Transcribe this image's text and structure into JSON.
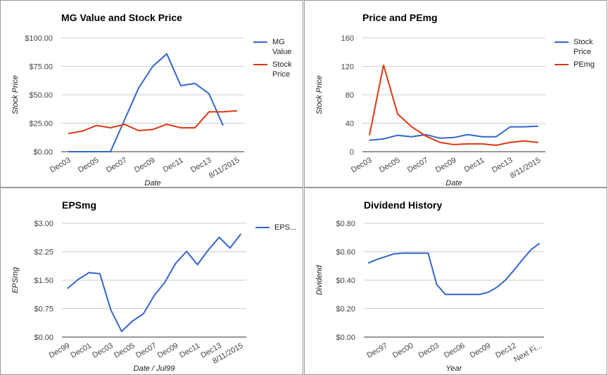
{
  "chart_data": [
    {
      "type": "line",
      "title": "MG Value and Stock Price",
      "y_label": "Stock Price",
      "x_label": "Date",
      "categories": [
        "Dec03",
        null,
        "Dec05",
        null,
        "Dec07",
        null,
        "Dec09",
        null,
        "Dec11",
        null,
        "Dec13",
        null,
        "8/11/2015"
      ],
      "series": [
        {
          "name": "MG Value",
          "color": "#3366cc",
          "values": [
            0,
            0,
            0,
            0,
            28,
            56,
            75,
            86,
            58,
            60,
            51,
            23,
            null
          ]
        },
        {
          "name": "Stock Price",
          "color": "#dc3912",
          "values": [
            16,
            18,
            23,
            21,
            24,
            18.5,
            19.5,
            24,
            21,
            21,
            35,
            35,
            36
          ]
        }
      ],
      "ylim": [
        0,
        100
      ],
      "yticks": [
        {
          "value": 0,
          "label": "$0.00"
        },
        {
          "value": 25,
          "label": "$25.00"
        },
        {
          "value": 50,
          "label": "$50.00"
        },
        {
          "value": 75,
          "label": "$75.00"
        },
        {
          "value": 100,
          "label": "$100.00"
        }
      ],
      "grid": true,
      "legend": "right"
    },
    {
      "type": "line",
      "title": "Price and PEmg",
      "y_label": "Stock Price",
      "x_label": "Date",
      "categories": [
        "Dec03",
        null,
        "Dec05",
        null,
        "Dec07",
        null,
        "Dec09",
        null,
        "Dec11",
        null,
        "Dec13",
        null,
        "8/11/2015"
      ],
      "series": [
        {
          "name": "Stock Price",
          "color": "#3366cc",
          "values": [
            16,
            18,
            23,
            21,
            24,
            19,
            20,
            24,
            21,
            21,
            35,
            35,
            36
          ]
        },
        {
          "name": "PEmg",
          "color": "#dc3912",
          "values": [
            23,
            122,
            53,
            35,
            22,
            13,
            10,
            11,
            11,
            9,
            13,
            15,
            13
          ]
        }
      ],
      "ylim": [
        0,
        160
      ],
      "yticks": [
        0,
        40,
        80,
        120,
        160
      ],
      "grid": true,
      "legend": "right"
    },
    {
      "type": "line",
      "title": "EPSmg",
      "y_label": "EPSmg",
      "x_label": "Date / Jul99",
      "categories": [
        "Dec99",
        null,
        "Dec01",
        null,
        "Dec03",
        null,
        "Dec05",
        null,
        "Dec07",
        null,
        "Dec09",
        null,
        "Dec11",
        null,
        "Dec13",
        null,
        "8/11/2015"
      ],
      "series": [
        {
          "name": "EPS...",
          "color": "#3366cc",
          "values": [
            1.28,
            1.52,
            1.7,
            1.67,
            0.72,
            0.15,
            0.42,
            0.61,
            1.09,
            1.45,
            1.95,
            2.26,
            1.91,
            2.3,
            2.63,
            2.35,
            2.72
          ]
        }
      ],
      "ylim": [
        0,
        3
      ],
      "yticks": [
        {
          "value": 0,
          "label": "$0.00"
        },
        {
          "value": 0.75,
          "label": "$0.75"
        },
        {
          "value": 1.5,
          "label": "$1.50"
        },
        {
          "value": 2.25,
          "label": "$2.25"
        },
        {
          "value": 3,
          "label": "$3.00"
        }
      ],
      "grid": true,
      "legend": "right"
    },
    {
      "type": "line",
      "title": "Dividend History",
      "y_label": "Dividend",
      "x_label": "Year",
      "categories": [
        null,
        null,
        "Dec97",
        null,
        null,
        "Dec00",
        null,
        null,
        "Dec03",
        null,
        null,
        "Dec06",
        null,
        null,
        "Dec09",
        null,
        null,
        "Dec12",
        null,
        null,
        "Next Fi..."
      ],
      "series": [
        {
          "color": "#3366cc",
          "values": [
            0.52,
            0.545,
            0.565,
            0.585,
            0.59,
            0.59,
            0.59,
            0.59,
            0.37,
            0.3,
            0.3,
            0.3,
            0.3,
            0.3,
            0.315,
            0.35,
            0.4,
            0.47,
            0.545,
            0.615,
            0.66
          ]
        }
      ],
      "ylim": [
        0,
        0.8
      ],
      "yticks": [
        {
          "value": 0,
          "label": "$0.00"
        },
        {
          "value": 0.2,
          "label": "$0.20"
        },
        {
          "value": 0.4,
          "label": "$0.40"
        },
        {
          "value": 0.6,
          "label": "$0.60"
        },
        {
          "value": 0.8,
          "label": "$0.80"
        }
      ],
      "grid": true
    }
  ]
}
